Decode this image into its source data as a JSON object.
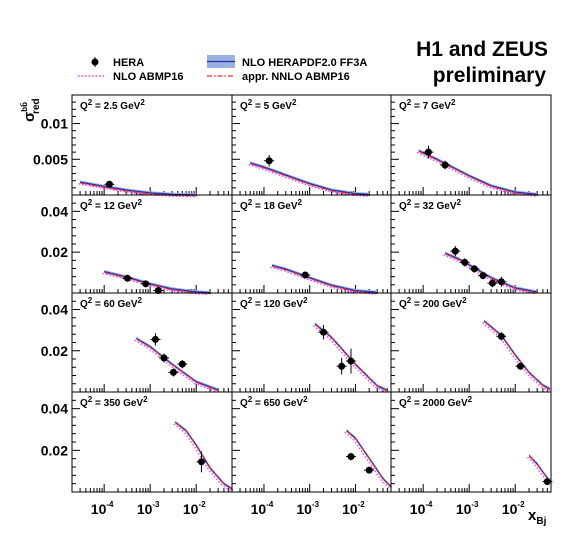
{
  "title_lines": [
    "H1 and ZEUS",
    "preliminary"
  ],
  "legend": {
    "data_label": "HERA",
    "band_label": "NLO HERAPDF2.0 FF3A",
    "abmp_label": "NLO ABMP16",
    "nnlo_label": "appr. NNLO ABMP16"
  },
  "colors": {
    "band_fill": "#9ab0e0",
    "band_line": "#1a2fb0",
    "abmp": "#ff33ff",
    "nnlo": "#ff2020",
    "points": "#000000"
  },
  "y_axis_label": {
    "base": "σ",
    "sup": "bb̄",
    "sub": "red"
  },
  "x_axis_label": {
    "base": "x",
    "sub": "Bj"
  },
  "x_tick_labels": [
    {
      "base": "10",
      "exp": "-4",
      "value": 0.0001
    },
    {
      "base": "10",
      "exp": "-3",
      "value": 0.001
    },
    {
      "base": "10",
      "exp": "-2",
      "value": 0.01
    }
  ],
  "y_tick_labels_row1": [
    {
      "text": "0.01",
      "value": 0.01
    },
    {
      "text": "0.005",
      "value": 0.005
    }
  ],
  "y_tick_labels_rows": [
    {
      "text": "0.04",
      "value": 0.04
    },
    {
      "text": "0.02",
      "value": 0.02
    }
  ],
  "chart_data": {
    "type": "scatter",
    "xscale": "log",
    "xlim": [
      2e-05,
      0.06
    ],
    "row_ylims": [
      [
        0,
        0.014
      ],
      [
        0,
        0.048
      ],
      [
        0,
        0.048
      ],
      [
        0,
        0.048
      ]
    ],
    "panels": [
      {
        "label": "Q² = 2.5 GeV²",
        "q_text": "Q",
        "q_sup": "2",
        "q_val": " = 2.5 GeV",
        "unit_sup": "2",
        "points": [
          {
            "x": 0.00013,
            "y": 0.0015,
            "err": 0.0004
          }
        ],
        "curve": [
          [
            3e-05,
            0.0018
          ],
          [
            0.0001,
            0.0012
          ],
          [
            0.0003,
            0.0007
          ],
          [
            0.001,
            0.0003
          ],
          [
            0.003,
            0.0001
          ],
          [
            0.01,
            2e-05
          ]
        ]
      },
      {
        "label": "Q² = 5 GeV²",
        "q_text": "Q",
        "q_sup": "2",
        "q_val": " = 5 GeV",
        "unit_sup": "2",
        "points": [
          {
            "x": 0.00013,
            "y": 0.0048,
            "err": 0.0008
          }
        ],
        "curve": [
          [
            5e-05,
            0.0045
          ],
          [
            0.0001,
            0.0039
          ],
          [
            0.0003,
            0.0028
          ],
          [
            0.001,
            0.0016
          ],
          [
            0.003,
            0.0007
          ],
          [
            0.01,
            0.0002
          ],
          [
            0.02,
            8e-05
          ]
        ]
      },
      {
        "label": "Q² = 7 GeV²",
        "q_text": "Q",
        "q_sup": "2",
        "q_val": " = 7 GeV",
        "unit_sup": "2",
        "points": [
          {
            "x": 0.00013,
            "y": 0.006,
            "err": 0.0009
          },
          {
            "x": 0.0003,
            "y": 0.0042,
            "err": 0.0006
          }
        ],
        "curve": [
          [
            8e-05,
            0.0062
          ],
          [
            0.0002,
            0.005
          ],
          [
            0.0005,
            0.0037
          ],
          [
            0.001,
            0.0027
          ],
          [
            0.003,
            0.0013
          ],
          [
            0.01,
            0.0004
          ],
          [
            0.03,
            0.0001
          ]
        ]
      },
      {
        "label": "Q² = 12 GeV²",
        "q_text": "Q",
        "q_sup": "2",
        "q_val": " = 12 GeV",
        "unit_sup": "2",
        "points": [
          {
            "x": 0.00032,
            "y": 0.0072,
            "err": 0.0012
          },
          {
            "x": 0.0008,
            "y": 0.0045,
            "err": 0.0009
          },
          {
            "x": 0.0015,
            "y": 0.0012,
            "err": 0.0007
          }
        ],
        "curve": [
          [
            0.0001,
            0.0105
          ],
          [
            0.0003,
            0.0079
          ],
          [
            0.001,
            0.0045
          ],
          [
            0.003,
            0.002
          ],
          [
            0.01,
            0.0006
          ],
          [
            0.02,
            0.0002
          ]
        ]
      },
      {
        "label": "Q² = 18 GeV²",
        "q_text": "Q",
        "q_sup": "2",
        "q_val": " = 18 GeV",
        "unit_sup": "2",
        "points": [
          {
            "x": 0.0008,
            "y": 0.0088,
            "err": 0.0012
          }
        ],
        "curve": [
          [
            0.00015,
            0.0135
          ],
          [
            0.0003,
            0.0117
          ],
          [
            0.001,
            0.0075
          ],
          [
            0.003,
            0.0038
          ],
          [
            0.01,
            0.0012
          ],
          [
            0.03,
            0.0003
          ]
        ]
      },
      {
        "label": "Q² = 32 GeV²",
        "q_text": "Q",
        "q_sup": "2",
        "q_val": " = 32 GeV",
        "unit_sup": "2",
        "points": [
          {
            "x": 0.0005,
            "y": 0.0205,
            "err": 0.0025
          },
          {
            "x": 0.0008,
            "y": 0.015,
            "err": 0.002
          },
          {
            "x": 0.0013,
            "y": 0.0118,
            "err": 0.0018
          },
          {
            "x": 0.002,
            "y": 0.0085,
            "err": 0.0018
          },
          {
            "x": 0.0032,
            "y": 0.0048,
            "err": 0.002
          },
          {
            "x": 0.005,
            "y": 0.0055,
            "err": 0.0025
          }
        ],
        "curve": [
          [
            0.0003,
            0.0195
          ],
          [
            0.0006,
            0.0166
          ],
          [
            0.001,
            0.0138
          ],
          [
            0.003,
            0.0075
          ],
          [
            0.01,
            0.0025
          ],
          [
            0.03,
            0.0005
          ]
        ]
      },
      {
        "label": "Q² = 60 GeV²",
        "q_text": "Q",
        "q_sup": "2",
        "q_val": " = 60 GeV",
        "unit_sup": "2",
        "points": [
          {
            "x": 0.0013,
            "y": 0.0255,
            "err": 0.003
          },
          {
            "x": 0.002,
            "y": 0.0165,
            "err": 0.0022
          },
          {
            "x": 0.0032,
            "y": 0.0095,
            "err": 0.002
          },
          {
            "x": 0.005,
            "y": 0.0135,
            "err": 0.002
          }
        ],
        "curve": [
          [
            0.0005,
            0.026
          ],
          [
            0.001,
            0.022
          ],
          [
            0.003,
            0.0135
          ],
          [
            0.01,
            0.005
          ],
          [
            0.03,
            0.001
          ]
        ]
      },
      {
        "label": "Q² = 120 GeV²",
        "q_text": "Q",
        "q_sup": "2",
        "q_val": " = 120 GeV",
        "unit_sup": "2",
        "points": [
          {
            "x": 0.002,
            "y": 0.029,
            "err": 0.0035
          },
          {
            "x": 0.005,
            "y": 0.0125,
            "err": 0.004
          },
          {
            "x": 0.008,
            "y": 0.015,
            "err": 0.006
          }
        ],
        "curve": [
          [
            0.0013,
            0.033
          ],
          [
            0.003,
            0.0265
          ],
          [
            0.005,
            0.021
          ],
          [
            0.01,
            0.0135
          ],
          [
            0.03,
            0.003
          ],
          [
            0.05,
            0.0008
          ]
        ]
      },
      {
        "label": "Q² = 200 GeV²",
        "q_text": "Q",
        "q_sup": "2",
        "q_val": " = 200 GeV",
        "unit_sup": "2",
        "points": [
          {
            "x": 0.005,
            "y": 0.027,
            "err": 0.002
          },
          {
            "x": 0.013,
            "y": 0.0125,
            "err": 0.0015
          }
        ],
        "curve": [
          [
            0.0021,
            0.0345
          ],
          [
            0.005,
            0.0275
          ],
          [
            0.01,
            0.018
          ],
          [
            0.02,
            0.0095
          ],
          [
            0.04,
            0.0033
          ],
          [
            0.06,
            0.0012
          ]
        ]
      },
      {
        "label": "Q² = 350 GeV²",
        "q_text": "Q",
        "q_sup": "2",
        "q_val": " = 350 GeV",
        "unit_sup": "2",
        "points": [
          {
            "x": 0.013,
            "y": 0.0145,
            "err": 0.005
          }
        ],
        "curve": [
          [
            0.0035,
            0.0335
          ],
          [
            0.006,
            0.0295
          ],
          [
            0.01,
            0.0225
          ],
          [
            0.02,
            0.0115
          ],
          [
            0.04,
            0.004
          ],
          [
            0.06,
            0.0015
          ]
        ]
      },
      {
        "label": "Q² = 650 GeV²",
        "q_text": "Q",
        "q_sup": "2",
        "q_val": " = 650 GeV",
        "unit_sup": "2",
        "points": [
          {
            "x": 0.008,
            "y": 0.017,
            "err": 0.0018
          },
          {
            "x": 0.02,
            "y": 0.0105,
            "err": 0.0015
          }
        ],
        "curve": [
          [
            0.0064,
            0.0295
          ],
          [
            0.01,
            0.0258
          ],
          [
            0.02,
            0.0162
          ],
          [
            0.04,
            0.0065
          ],
          [
            0.06,
            0.0025
          ]
        ]
      },
      {
        "label": "Q² = 2000 GeV²",
        "q_text": "Q",
        "q_sup": "2",
        "q_val": " = 2000 GeV",
        "unit_sup": "2",
        "points": [
          {
            "x": 0.05,
            "y": 0.005,
            "err": 0.0015
          }
        ],
        "curve": [
          [
            0.02,
            0.0175
          ],
          [
            0.03,
            0.0135
          ],
          [
            0.045,
            0.008
          ],
          [
            0.06,
            0.0045
          ]
        ]
      }
    ]
  }
}
